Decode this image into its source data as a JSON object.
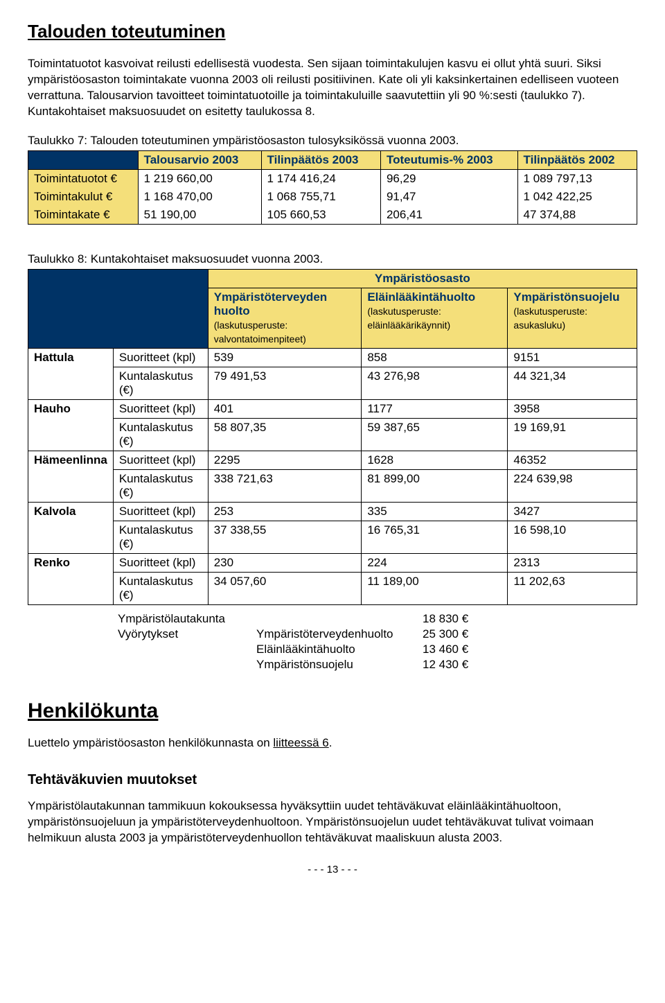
{
  "title": "Talouden toteutuminen",
  "intro": "Toimintatuotot kasvoivat reilusti edellisestä vuodesta. Sen sijaan toimintakulujen kasvu ei ollut yhtä suuri. Siksi ympäristöosaston toimintakate vuonna 2003 oli reilusti positiivinen. Kate oli yli kaksinkertainen edelliseen vuoteen verrattuna. Talousarvion tavoitteet toimintatuotoille ja toimintakuluille saavutettiin yli 90 %:sesti (taulukko 7). Kuntakohtaiset maksuosuudet on esitetty taulukossa 8.",
  "table7": {
    "caption": "Taulukko 7: Talouden toteutuminen ympäristöosaston tulosyksikössä vuonna 2003.",
    "headers": [
      "",
      "Talousarvio 2003",
      "Tilinpäätös 2003",
      "Toteutumis-% 2003",
      "Tilinpäätös 2002"
    ],
    "rows": [
      {
        "label": "Toimintatuotot €",
        "c1": "1 219 660,00",
        "c2": "1 174 416,24",
        "c3": "96,29",
        "c4": "1 089 797,13"
      },
      {
        "label": "Toimintakulut €",
        "c1": "1 168 470,00",
        "c2": "1 068 755,71",
        "c3": "91,47",
        "c4": "1 042 422,25"
      },
      {
        "label": "Toimintakate €",
        "c1": "51 190,00",
        "c2": "105 660,53",
        "c3": "206,41",
        "c4": "47 374,88"
      }
    ]
  },
  "table8": {
    "caption": "Taulukko 8: Kuntakohtaiset maksuosuudet vuonna 2003.",
    "superheader": "Ympäristöosasto",
    "colheaders": [
      {
        "title": "Ympäristöterveyden huolto",
        "sub": "(laskutusperuste: valvontatoimenpiteet)"
      },
      {
        "title": "Eläinlääkintähuolto",
        "sub": "(laskutusperuste: eläinlääkärikäynnit)"
      },
      {
        "title": "Ympäristönsuojelu",
        "sub": "(laskutusperuste: asukasluku)"
      }
    ],
    "rowpair_labels": [
      "Suoritteet (kpl)",
      "Kuntalaskutus (€)"
    ],
    "rows": [
      {
        "name": "Hattula",
        "s": [
          "539",
          "858",
          "9151"
        ],
        "k": [
          "79 491,53",
          "43 276,98",
          "44 321,34"
        ]
      },
      {
        "name": "Hauho",
        "s": [
          "401",
          "1177",
          "3958"
        ],
        "k": [
          "58 807,35",
          "59 387,65",
          "19 169,91"
        ]
      },
      {
        "name": "Hämeenlinna",
        "s": [
          "2295",
          "1628",
          "46352"
        ],
        "k": [
          "338 721,63",
          "81 899,00",
          "224 639,98"
        ]
      },
      {
        "name": "Kalvola",
        "s": [
          "253",
          "335",
          "3427"
        ],
        "k": [
          "37 338,55",
          "16 765,31",
          "16 598,10"
        ]
      },
      {
        "name": "Renko",
        "s": [
          "230",
          "224",
          "2313"
        ],
        "k": [
          "34 057,60",
          "11 189,00",
          "11 202,63"
        ]
      }
    ],
    "summary": [
      {
        "c1": "Ympäristölautakunta",
        "c2": "",
        "c3": "18 830 €"
      },
      {
        "c1": "Vyörytykset",
        "c2": "Ympäristöterveydenhuolto",
        "c3": "25 300 €"
      },
      {
        "c1": "",
        "c2": "Eläinlääkintähuolto",
        "c3": "13 460 €"
      },
      {
        "c1": "",
        "c2": "Ympäristönsuojelu",
        "c3": "12 430 €"
      }
    ]
  },
  "section2": {
    "title": "Henkilökunta",
    "text_a": "Luettelo ympäristöosaston henkilökunnasta on ",
    "link": "liitteessä 6",
    "text_b": "."
  },
  "section3": {
    "title": "Tehtäväkuvien muutokset",
    "text": "Ympäristölautakunnan tammikuun kokouksessa hyväksyttiin uudet tehtäväkuvat eläinlääkintähuoltoon, ympäristönsuojeluun ja ympäristöterveydenhuoltoon. Ympäristönsuojelun uudet tehtäväkuvat tulivat voimaan helmikuun alusta 2003 ja ympäristöterveydenhuollon tehtäväkuvat maaliskuun alusta 2003."
  },
  "page_number": "- - -   13   - - -",
  "colors": {
    "header_bg": "#f4df7a",
    "header_fg": "#003366",
    "corner_bg": "#003366"
  }
}
